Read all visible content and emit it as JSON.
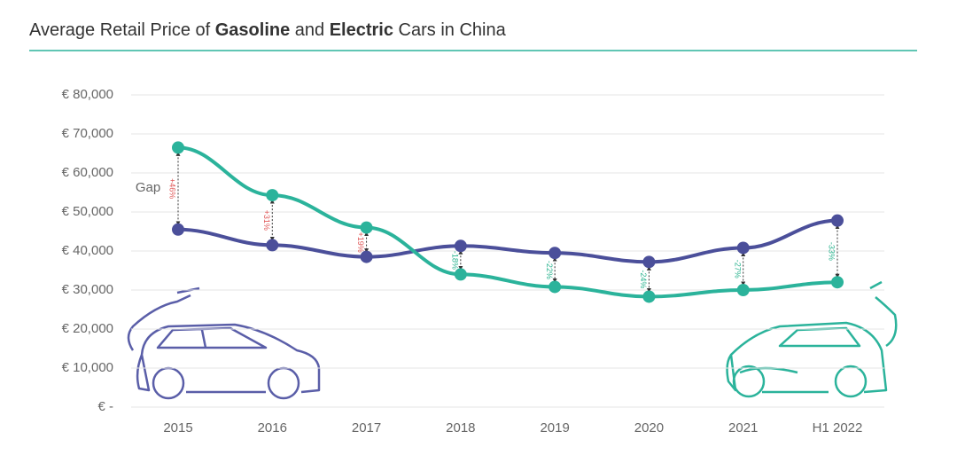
{
  "chart_data": {
    "type": "line",
    "title": [
      "Average Retail Price of ",
      "Gasoline",
      " and ",
      "Electric",
      " Cars in China"
    ],
    "categories": [
      "2015",
      "2016",
      "2017",
      "2018",
      "2019",
      "2020",
      "2021",
      "H1 2022"
    ],
    "series": [
      {
        "name": "Gasoline",
        "color": "#4b4f9a",
        "values": [
          45500,
          41500,
          38500,
          41300,
          39500,
          37200,
          40800,
          47800
        ]
      },
      {
        "name": "Electric",
        "color": "#2bb39b",
        "values": [
          66500,
          54300,
          46000,
          34000,
          30800,
          28300,
          30000,
          32000
        ]
      }
    ],
    "annotations": {
      "name": "Gap",
      "positive_color": "#e05a5a",
      "negative_color": "#2bb38f",
      "values": [
        46,
        31,
        19,
        -18,
        -22,
        -24,
        -27,
        -33
      ],
      "value_labels": [
        "+46%",
        "+31%",
        "+19%",
        "-18%",
        "-22%",
        "-24%",
        "-27%",
        "-33%"
      ]
    },
    "ylim": [
      0,
      80000
    ],
    "yticks": [
      {
        "value": 0,
        "label": "€ -"
      },
      {
        "value": 10000,
        "label": "€ 10,000"
      },
      {
        "value": 20000,
        "label": "€ 20,000"
      },
      {
        "value": 30000,
        "label": "€ 30,000"
      },
      {
        "value": 40000,
        "label": "€ 40,000"
      },
      {
        "value": 50000,
        "label": "€ 50,000"
      },
      {
        "value": 60000,
        "label": "€ 60,000"
      },
      {
        "value": 70000,
        "label": "€ 70,000"
      },
      {
        "value": 80000,
        "label": "€ 80,000"
      }
    ],
    "grid": true
  }
}
